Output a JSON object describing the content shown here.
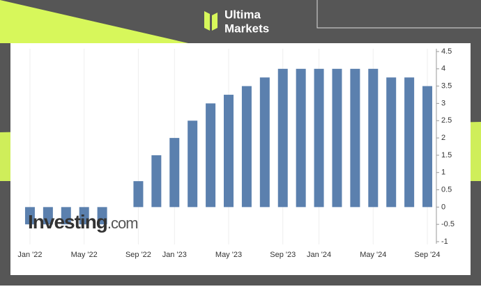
{
  "brand": {
    "line1": "Ultima",
    "line2": "Markets"
  },
  "watermark": {
    "name": "Investing",
    "suffix": ".com"
  },
  "chart_data": {
    "type": "bar",
    "categories": [
      "Jan '22",
      null,
      null,
      "May '22",
      null,
      null,
      "Sep '22",
      null,
      "Jan '23",
      null,
      null,
      "May '23",
      null,
      null,
      "Sep '23",
      null,
      "Jan '24",
      null,
      null,
      "May '24",
      null,
      null,
      "Sep '24"
    ],
    "values": [
      -0.5,
      -0.5,
      -0.5,
      -0.5,
      -0.5,
      0,
      0.75,
      1.5,
      2,
      2.5,
      3,
      3.25,
      3.5,
      3.75,
      4,
      4,
      4,
      4,
      4,
      4,
      3.75,
      3.75,
      3.5
    ],
    "color": "#5b80ae",
    "ylim": [
      -1,
      4.5
    ],
    "yticks": [
      -1,
      -0.5,
      0,
      0.5,
      1,
      1.5,
      2,
      2.5,
      3,
      3.5,
      4,
      4.5
    ],
    "grid": false
  }
}
